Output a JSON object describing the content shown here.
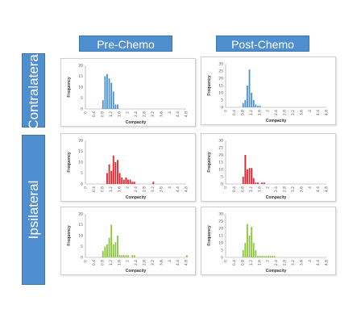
{
  "headers": {
    "col1": "Pre-Chemo",
    "col2": "Post-Chemo",
    "row1": "Contralateral",
    "row2": "Ipsilateral"
  },
  "colors": {
    "header_bg": "#4f8fd0",
    "blue": "#4a90d9",
    "red": "#e8202a",
    "green": "#8cc63f"
  },
  "chart_data": [
    {
      "id": "contra-pre",
      "type": "bar",
      "color": "#4a90d9",
      "xlabel": "Compacity",
      "ylabel": "Frequency",
      "xticks": [
        "0",
        "0.4",
        "0.8",
        "1.2",
        "1.6",
        "2",
        "2.4",
        "2.8",
        "3.2",
        "3.6",
        "4",
        "4.4",
        "4.8"
      ],
      "yticks": [
        0,
        5,
        10,
        15,
        20
      ],
      "ylim": [
        0,
        20
      ],
      "bin_width": 0.1,
      "bin_start": 0.8,
      "values": [
        4,
        15,
        16,
        14,
        12,
        8,
        2,
        2
      ]
    },
    {
      "id": "contra-post",
      "type": "bar",
      "color": "#4a90d9",
      "xlabel": "Compacity",
      "ylabel": "Frequency",
      "xticks": [
        "0",
        "0.4",
        "0.8",
        "1.2",
        "1.6",
        "2",
        "2.4",
        "2.8",
        "3.2",
        "3.6",
        "4",
        "4.4",
        "4.8"
      ],
      "yticks": [
        0,
        5,
        10,
        15,
        20,
        25,
        30
      ],
      "ylim": [
        0,
        30
      ],
      "bin_width": 0.1,
      "bin_start": 0.8,
      "values": [
        3,
        5,
        15,
        26,
        10,
        5,
        2,
        1,
        1
      ]
    },
    {
      "id": "ipsi-pre",
      "type": "bar",
      "color": "#e8202a",
      "xlabel": "Compacity",
      "ylabel": "Frequency",
      "xticks": [
        "0",
        "0.4",
        "0.8",
        "1.2",
        "1.6",
        "2",
        "2.4",
        "2.8",
        "3.2",
        "3.6",
        "4",
        "4.4",
        "4.8"
      ],
      "yticks": [
        0,
        5,
        10,
        15,
        20
      ],
      "ylim": [
        0,
        20
      ],
      "bin_width": 0.1,
      "bin_start": 1.0,
      "values": [
        5,
        9,
        6,
        13,
        10,
        11,
        5,
        3,
        2,
        3,
        2,
        2,
        1,
        1,
        0,
        0,
        0,
        0,
        0,
        0,
        0,
        0,
        1
      ]
    },
    {
      "id": "ipsi-post",
      "type": "bar",
      "color": "#e8202a",
      "xlabel": "Compacity",
      "ylabel": "Frequency",
      "xticks": [
        "0",
        "0.4",
        "0.8",
        "1.2",
        "1.6",
        "2",
        "2.4",
        "2.8",
        "3.2",
        "3.6",
        "4",
        "4.4",
        "4.8"
      ],
      "yticks": [
        0,
        5,
        10,
        15,
        20,
        25,
        30
      ],
      "ylim": [
        0,
        30
      ],
      "bin_width": 0.1,
      "bin_start": 0.8,
      "values": [
        5,
        20,
        10,
        11,
        11,
        4,
        1,
        1,
        0,
        1,
        1
      ]
    },
    {
      "id": "ipsi-pre-2",
      "type": "bar",
      "color": "#8cc63f",
      "xlabel": "Compacity",
      "ylabel": "Frequency",
      "xticks": [
        "0",
        "0.4",
        "0.8",
        "1.2",
        "1.6",
        "2",
        "2.4",
        "2.8",
        "3.2",
        "3.6",
        "4",
        "4.4",
        "4.8"
      ],
      "yticks": [
        0,
        5,
        10,
        15,
        20
      ],
      "ylim": [
        0,
        20
      ],
      "bin_width": 0.1,
      "bin_start": 0.8,
      "values": [
        3,
        5,
        6,
        9,
        15,
        6,
        7,
        10,
        1,
        1,
        1,
        1,
        1,
        0,
        1,
        1,
        0,
        0,
        0,
        0,
        0,
        0,
        0,
        0,
        0,
        0,
        0,
        0,
        0,
        0,
        0,
        0,
        0,
        0,
        0,
        0,
        0,
        0,
        0,
        0,
        1
      ]
    },
    {
      "id": "ipsi-post-2",
      "type": "bar",
      "color": "#8cc63f",
      "xlabel": "Compacity",
      "ylabel": "Frequency",
      "xticks": [
        "0",
        "0.4",
        "0.8",
        "1.2",
        "1.6",
        "2",
        "2.4",
        "2.8",
        "3.2",
        "3.6",
        "4",
        "4.4",
        "4.8"
      ],
      "yticks": [
        0,
        5,
        10,
        15,
        20,
        25,
        30
      ],
      "ylim": [
        0,
        30
      ],
      "bin_width": 0.1,
      "bin_start": 0.8,
      "values": [
        5,
        10,
        23,
        15,
        21,
        10,
        5,
        1,
        1,
        1,
        1,
        1,
        1,
        1,
        1,
        1
      ]
    }
  ]
}
